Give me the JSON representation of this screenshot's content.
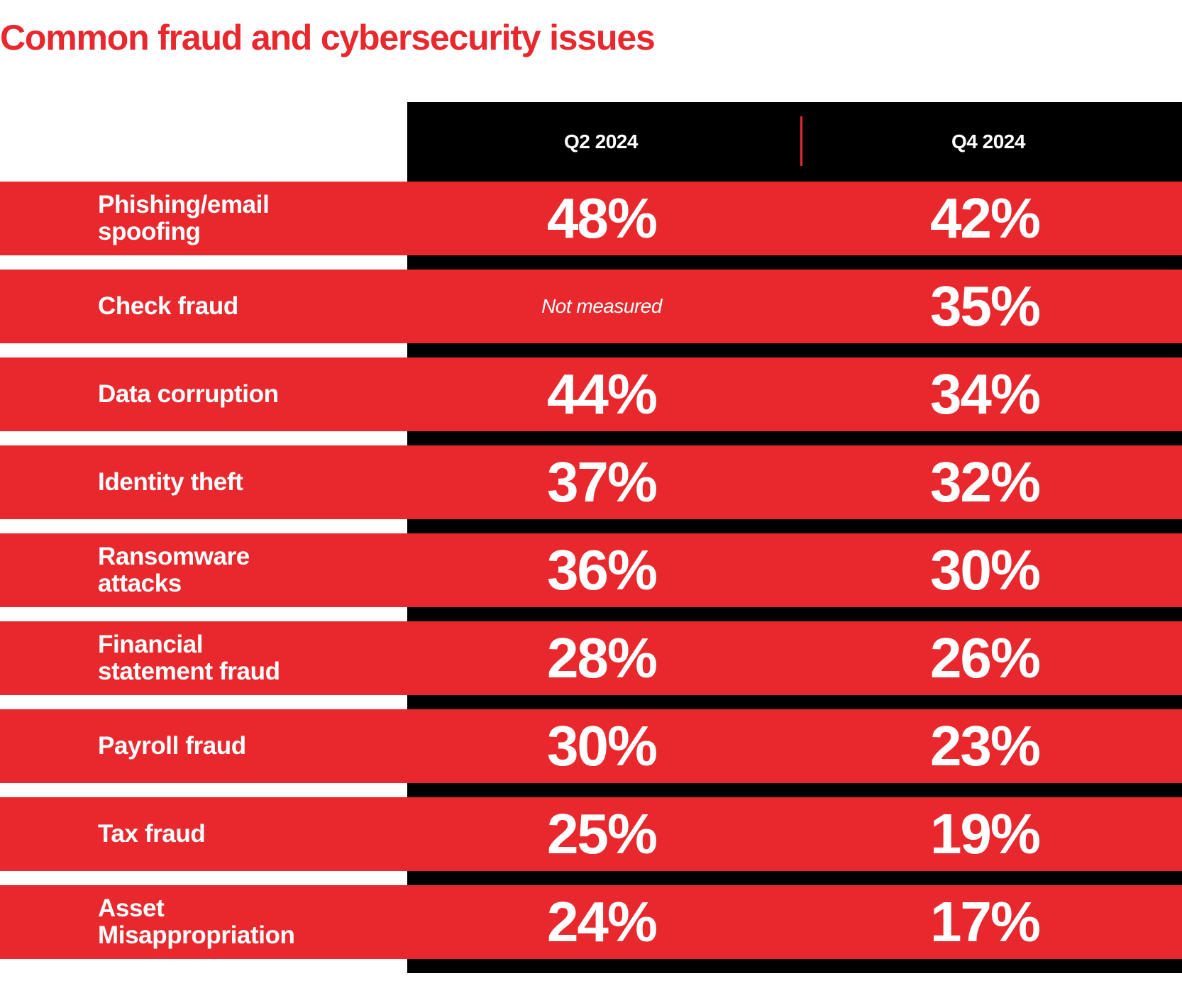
{
  "chart_data": {
    "type": "table",
    "title": "Common fraud and cybersecurity issues",
    "columns": [
      "Q2 2024",
      "Q4 2024"
    ],
    "rows": [
      {
        "label": "Phishing/email\nspoofing",
        "q2": "48%",
        "q4": "42%"
      },
      {
        "label": "Check fraud",
        "q2": "Not measured",
        "q4": "35%"
      },
      {
        "label": "Data corruption",
        "q2": "44%",
        "q4": "34%"
      },
      {
        "label": "Identity theft",
        "q2": "37%",
        "q4": "32%"
      },
      {
        "label": "Ransomware\nattacks",
        "q2": "36%",
        "q4": "30%"
      },
      {
        "label": "Financial\nstatement fraud",
        "q2": "28%",
        "q4": "26%"
      },
      {
        "label": "Payroll fraud",
        "q2": "30%",
        "q4": "23%"
      },
      {
        "label": "Tax fraud",
        "q2": "25%",
        "q4": "19%"
      },
      {
        "label": "Asset\nMisappropriation",
        "q2": "24%",
        "q4": "17%"
      }
    ]
  },
  "colors": {
    "accent_red": "#e8282d",
    "band_black": "#000000",
    "text_white": "#ffffff"
  }
}
